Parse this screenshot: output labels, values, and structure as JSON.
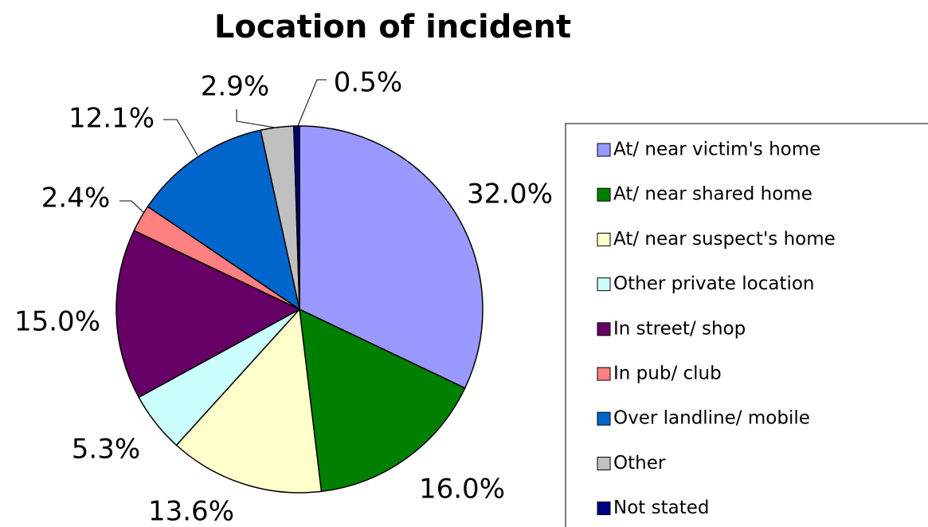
{
  "chart_data": {
    "type": "pie",
    "title": "Location of incident",
    "categories": [
      "At/ near victim's home",
      "At/ near shared home",
      "At/ near suspect's home",
      "Other private location",
      "In street/ shop",
      "In pub/ club",
      "Over landline/ mobile",
      "Other",
      "Not stated"
    ],
    "values": [
      32.0,
      16.0,
      13.6,
      5.3,
      15.0,
      2.4,
      12.1,
      2.9,
      0.5
    ],
    "value_labels": [
      "32.0%",
      "16.0%",
      "13.6%",
      "5.3%",
      "15.0%",
      "2.4%",
      "12.1%",
      "2.9%",
      "0.5%"
    ],
    "colors": [
      "#9999ff",
      "#008000",
      "#ffffcc",
      "#ccffff",
      "#660066",
      "#ff8080",
      "#0066cc",
      "#c0c0c0",
      "#000080"
    ],
    "legend": "right"
  }
}
